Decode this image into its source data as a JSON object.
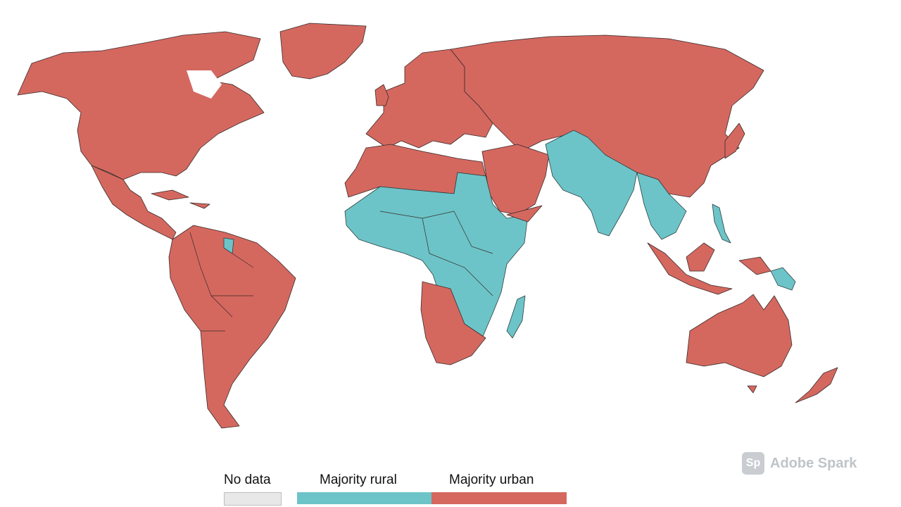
{
  "legend": {
    "no_data": "No data",
    "majority_rural": "Majority rural",
    "majority_urban": "Majority urban"
  },
  "colors": {
    "urban": "#d4685f",
    "rural": "#6cc4c8",
    "no_data": "#e8e8e8"
  },
  "watermark": {
    "badge": "Sp",
    "text": "Adobe Spark"
  }
}
